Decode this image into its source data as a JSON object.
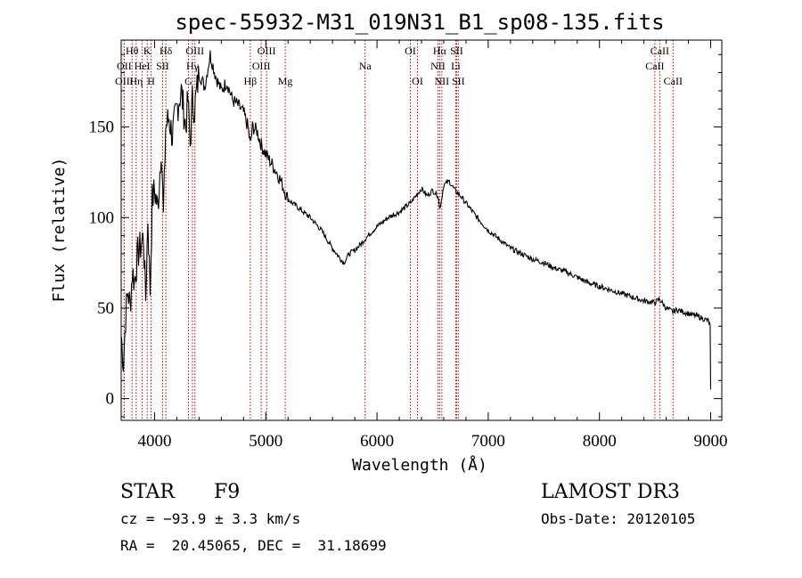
{
  "chart_data": {
    "type": "line",
    "title": "spec-55932-M31_019N31_B1_sp08-135.fits",
    "xlabel": "Wavelength (Å)",
    "ylabel": "Flux (relative)",
    "xlim": [
      3700,
      9100
    ],
    "ylim": [
      -12,
      198
    ],
    "x_ticks": [
      4000,
      5000,
      6000,
      7000,
      8000,
      9000
    ],
    "y_ticks": [
      0,
      50,
      100,
      150
    ],
    "series": [
      {
        "name": "flux",
        "x": [
          3700,
          3720,
          3740,
          3760,
          3780,
          3800,
          3820,
          3850,
          3880,
          3900,
          3920,
          3940,
          3960,
          3980,
          4000,
          4030,
          4060,
          4080,
          4100,
          4130,
          4160,
          4200,
          4240,
          4280,
          4300,
          4320,
          4340,
          4360,
          4400,
          4450,
          4500,
          4550,
          4600,
          4650,
          4700,
          4750,
          4800,
          4840,
          4861,
          4880,
          4920,
          4960,
          5000,
          5050,
          5100,
          5150,
          5200,
          5300,
          5400,
          5500,
          5600,
          5700,
          5750,
          5800,
          5850,
          5890,
          5950,
          6000,
          6100,
          6200,
          6300,
          6350,
          6400,
          6450,
          6500,
          6550,
          6563,
          6580,
          6600,
          6650,
          6700,
          6750,
          6800,
          6900,
          7000,
          7100,
          7200,
          7300,
          7400,
          7500,
          7600,
          7700,
          7800,
          7900,
          8000,
          8100,
          8200,
          8300,
          8400,
          8500,
          8540,
          8600,
          8660,
          8700,
          8800,
          8900,
          8980,
          8995,
          9000
        ],
        "y": [
          35,
          20,
          45,
          60,
          50,
          70,
          65,
          80,
          85,
          90,
          55,
          100,
          60,
          110,
          115,
          105,
          140,
          100,
          150,
          155,
          145,
          160,
          170,
          150,
          165,
          140,
          165,
          160,
          180,
          172,
          190,
          178,
          170,
          175,
          165,
          162,
          158,
          150,
          140,
          150,
          148,
          140,
          135,
          130,
          125,
          118,
          110,
          105,
          100,
          93,
          83,
          75,
          80,
          82,
          85,
          88,
          92,
          95,
          100,
          103,
          108,
          112,
          116,
          112,
          115,
          112,
          105,
          110,
          118,
          120,
          115,
          112,
          108,
          100,
          93,
          88,
          83,
          80,
          77,
          75,
          72,
          70,
          67,
          64,
          62,
          60,
          58,
          56,
          54,
          53,
          55,
          50,
          48,
          49,
          47,
          45,
          43,
          40,
          5
        ]
      }
    ],
    "line_markers": [
      {
        "label": "Hθ",
        "x": 3798,
        "row": 1
      },
      {
        "label": "OII",
        "x": 3727,
        "row": 2
      },
      {
        "label": "OIII",
        "x": 3727,
        "row": 3
      },
      {
        "label": "K",
        "x": 3934,
        "row": 1
      },
      {
        "label": "HeI",
        "x": 3889,
        "row": 2
      },
      {
        "label": "Hη",
        "x": 3835,
        "row": 3
      },
      {
        "label": "Hδ",
        "x": 4102,
        "row": 1
      },
      {
        "label": "SII",
        "x": 4072,
        "row": 2
      },
      {
        "label": "H",
        "x": 3969,
        "row": 3
      },
      {
        "label": "OIII",
        "x": 4363,
        "row": 1
      },
      {
        "label": "Hγ",
        "x": 4341,
        "row": 2
      },
      {
        "label": "G",
        "x": 4305,
        "row": 3
      },
      {
        "label": "OIII",
        "x": 5007,
        "row": 1
      },
      {
        "label": "OIII",
        "x": 4959,
        "row": 2
      },
      {
        "label": "Hβ",
        "x": 4861,
        "row": 3
      },
      {
        "label": "Mg",
        "x": 5175,
        "row": 3
      },
      {
        "label": "Na",
        "x": 5893,
        "row": 2
      },
      {
        "label": "OI",
        "x": 6300,
        "row": 1
      },
      {
        "label": "OI",
        "x": 6364,
        "row": 3
      },
      {
        "label": "Hα",
        "x": 6563,
        "row": 1
      },
      {
        "label": "NII",
        "x": 6548,
        "row": 2
      },
      {
        "label": "NII",
        "x": 6583,
        "row": 3
      },
      {
        "label": "SII",
        "x": 6716,
        "row": 1
      },
      {
        "label": "Li",
        "x": 6708,
        "row": 2
      },
      {
        "label": "SII",
        "x": 6731,
        "row": 3
      },
      {
        "label": "CaII",
        "x": 8542,
        "row": 1
      },
      {
        "label": "CaII",
        "x": 8498,
        "row": 2
      },
      {
        "label": "CaII",
        "x": 8662,
        "row": 3
      }
    ],
    "annotations": {
      "object_class": "STAR",
      "subclass": "F9",
      "survey": "LAMOST DR3",
      "cz": "cz = −93.9 ± 3.3 km/s",
      "obs_date": "Obs-Date: 20120105",
      "coords": "RA =  20.45065, DEC =  31.18699"
    }
  }
}
